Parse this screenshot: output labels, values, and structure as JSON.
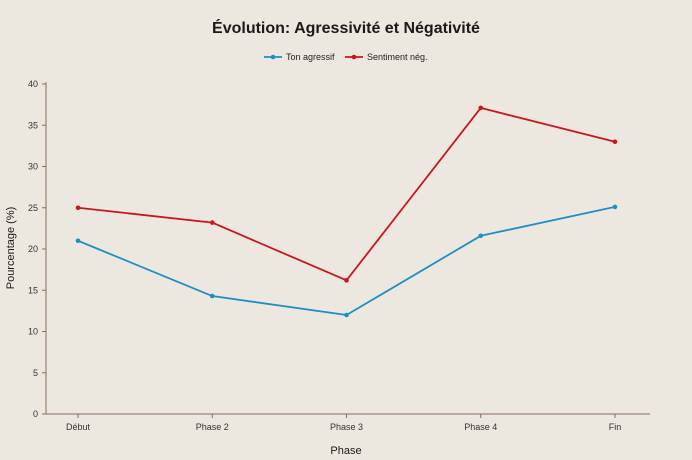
{
  "chart_data": {
    "type": "line",
    "title": "Évolution: Agressivité et Négativité",
    "xlabel": "Phase",
    "ylabel": "Pourcentage (%)",
    "categories": [
      "Début",
      "Phase 2",
      "Phase 3",
      "Phase 4",
      "Fin"
    ],
    "ylim": [
      0,
      40
    ],
    "yticks": [
      0,
      5,
      10,
      15,
      20,
      25,
      30,
      35,
      40
    ],
    "grid": false,
    "legend_position": "top-center",
    "series": [
      {
        "name": "Ton agressif",
        "color": "#1e8fc4",
        "values": [
          21,
          14.3,
          12,
          21.6,
          25.1
        ]
      },
      {
        "name": "Sentiment nég.",
        "color": "#c8161d",
        "values": [
          25,
          23.2,
          16.2,
          37.1,
          33
        ]
      }
    ]
  },
  "colors": {
    "axis": "#8a6b5c",
    "background": "#ede8df"
  }
}
